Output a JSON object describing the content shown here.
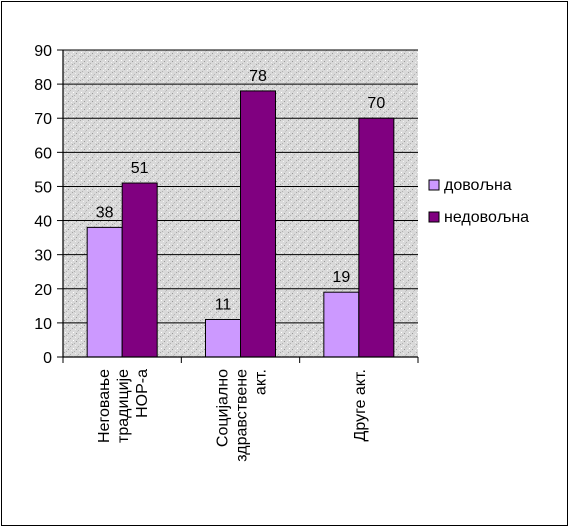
{
  "chart_data": {
    "type": "bar",
    "categories": [
      [
        "Неговање",
        "традиције",
        "НОР-а"
      ],
      [
        "Социјално",
        "здравствене",
        "акт."
      ],
      [
        "Друге акт."
      ]
    ],
    "series": [
      {
        "name": "довољна",
        "values": [
          38,
          11,
          19
        ],
        "color": "#cc99ff"
      },
      {
        "name": "недовољна",
        "values": [
          51,
          78,
          70
        ],
        "color": "#800080"
      }
    ],
    "ylim": [
      0,
      90
    ],
    "yticks": [
      0,
      10,
      20,
      30,
      40,
      50,
      60,
      70,
      80,
      90
    ],
    "legend_position": "right",
    "plot_background": "granite texture"
  }
}
